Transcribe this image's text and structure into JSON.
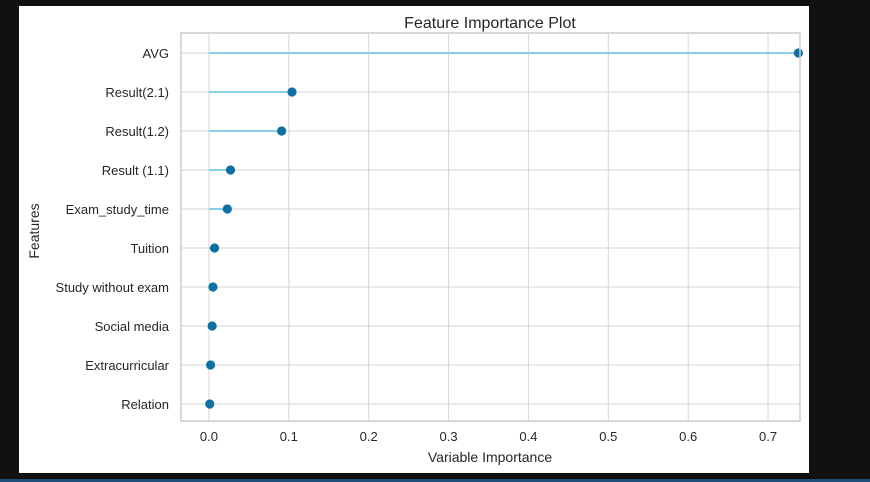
{
  "chart_data": {
    "type": "scatter",
    "subtype": "lollipop",
    "title": "Feature Importance Plot",
    "xlabel": "Variable Importance",
    "ylabel": "Features",
    "xlim": [
      -0.035,
      0.74
    ],
    "xticks": [
      "0.0",
      "0.1",
      "0.2",
      "0.3",
      "0.4",
      "0.5",
      "0.6",
      "0.7"
    ],
    "grid": true,
    "categories": [
      "AVG",
      "Result(2.1)",
      "Result(1.2)",
      "Result (1.1)",
      "Exam_study_time",
      "Tuition",
      "Study without exam",
      "Social media",
      "Extracurricular",
      "Relation"
    ],
    "values": [
      0.738,
      0.104,
      0.091,
      0.027,
      0.023,
      0.007,
      0.005,
      0.004,
      0.002,
      0.001
    ],
    "colors": {
      "stem": "#87ceeb",
      "marker": "#0e6fa3",
      "grid": "#d5d5d5",
      "spine": "#cccccc"
    }
  }
}
